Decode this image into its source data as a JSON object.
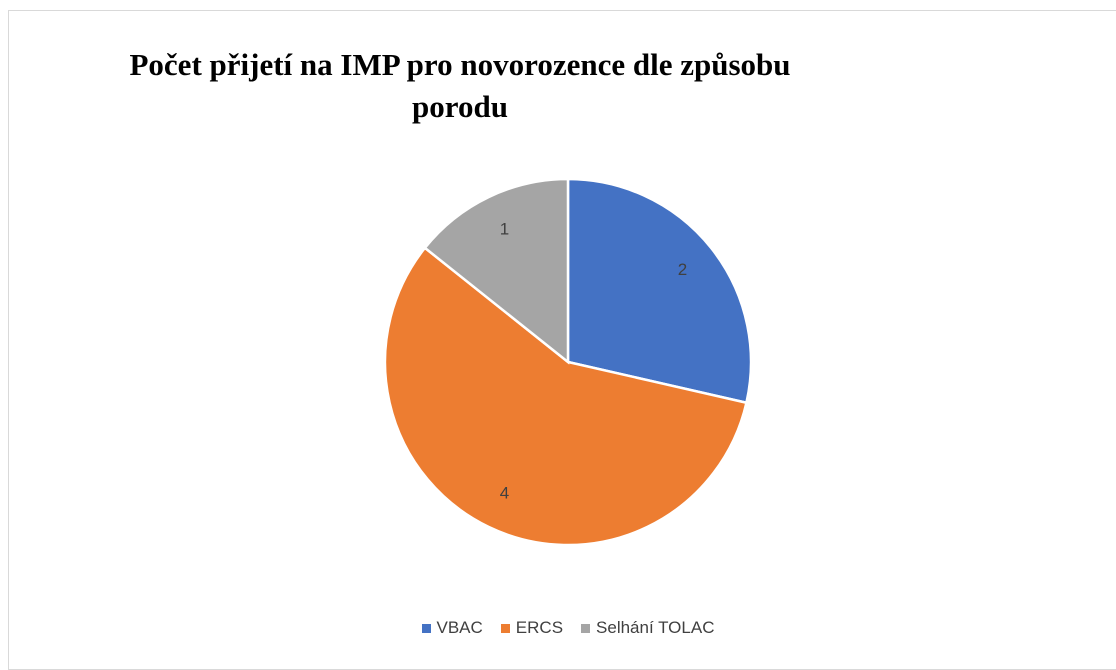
{
  "chart_data": {
    "type": "pie",
    "title": "Počet přijetí na IMP pro novorozence dle způsobu porodu",
    "categories": [
      "VBAC",
      "ERCS",
      "Selhání TOLAC"
    ],
    "values": [
      2,
      4,
      1
    ],
    "colors": [
      "#4472c4",
      "#ed7d31",
      "#a5a5a5"
    ],
    "legend": "bottom"
  }
}
